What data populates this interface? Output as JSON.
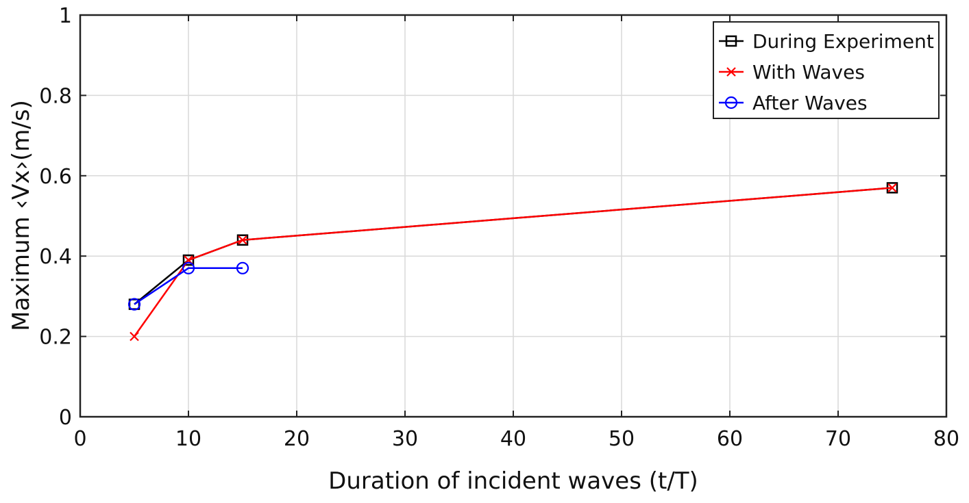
{
  "chart_data": {
    "type": "line",
    "title": "",
    "xlabel": "Duration of incident waves (t/T)",
    "ylabel": "Maximum ‹Vx›(m/s)",
    "xlim": [
      0,
      80
    ],
    "ylim": [
      0,
      1
    ],
    "xticks": [
      0,
      10,
      20,
      30,
      40,
      50,
      60,
      70,
      80
    ],
    "yticks": [
      0,
      0.2,
      0.4,
      0.6,
      0.8,
      1
    ],
    "xtick_labels": [
      "0",
      "10",
      "20",
      "30",
      "40",
      "50",
      "60",
      "70",
      "80"
    ],
    "ytick_labels": [
      "0",
      "0.2",
      "0.4",
      "0.6",
      "0.8",
      "1"
    ],
    "grid": true,
    "legend_position": "top-right",
    "series": [
      {
        "name": "During Experiment",
        "color": "#000000",
        "marker": "square",
        "x": [
          5,
          10,
          15,
          75
        ],
        "y": [
          0.28,
          0.39,
          0.44,
          0.57
        ]
      },
      {
        "name": "With Waves",
        "color": "#ff0000",
        "marker": "x",
        "x": [
          5,
          10,
          15,
          75
        ],
        "y": [
          0.2,
          0.39,
          0.44,
          0.57
        ]
      },
      {
        "name": "After Waves",
        "color": "#0000ff",
        "marker": "circle",
        "x": [
          5,
          10,
          15
        ],
        "y": [
          0.28,
          0.37,
          0.37
        ]
      }
    ]
  }
}
